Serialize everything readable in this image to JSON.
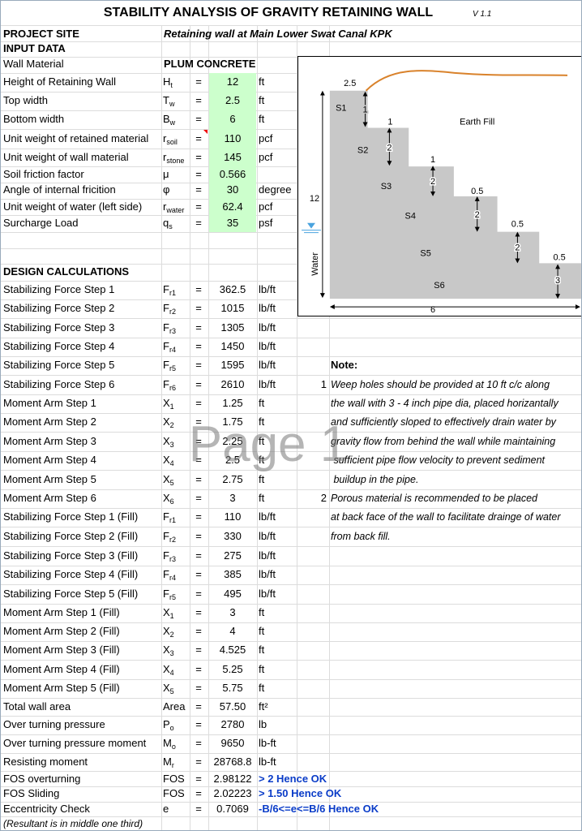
{
  "header": {
    "title": "STABILITY ANALYSIS OF GRAVITY RETAINING WALL",
    "version": "V 1.1"
  },
  "project": {
    "label": "PROJECT SITE",
    "value": "Retaining wall at Main Lower Swat Canal KPK"
  },
  "input_heading": "INPUT DATA",
  "wall_material": {
    "label": "Wall Material",
    "value": "PLUM CONCRETE"
  },
  "inputs": [
    {
      "label": "Height of Retaining Wall",
      "symbol": "H",
      "sub": "t",
      "eq": "=",
      "value": "12",
      "unit": "ft"
    },
    {
      "label": "Top width",
      "symbol": "T",
      "sub": "w",
      "eq": "=",
      "value": "2.5",
      "unit": "ft"
    },
    {
      "label": "Bottom width",
      "symbol": "B",
      "sub": "w",
      "eq": "=",
      "value": "6",
      "unit": "ft"
    },
    {
      "label": "Unit weight of retained material",
      "symbol": "r",
      "sub": "soil",
      "eq": "=",
      "value": "110",
      "unit": "pcf"
    },
    {
      "label": "Unit weight of wall material",
      "symbol": "r",
      "sub": "stone",
      "eq": "=",
      "value": "145",
      "unit": "pcf"
    },
    {
      "label": "Soil friction factor",
      "symbol": "μ",
      "eq": "=",
      "value": "0.566"
    },
    {
      "label": "Angle of internal fricition",
      "symbol": "φ",
      "eq": "=",
      "value": "30",
      "unit": "degree"
    },
    {
      "label": "Unit weight of water (left side)",
      "symbol": "r",
      "sub": "water",
      "eq": "=",
      "value": "62.4",
      "unit": "pcf"
    },
    {
      "label": "Surcharge Load",
      "symbol": "q",
      "sub": "s",
      "eq": "=",
      "value": "35",
      "unit": "psf"
    }
  ],
  "design_heading": "DESIGN CALCULATIONS",
  "calcs": [
    {
      "label": "Stabilizing Force Step 1",
      "symbol": "F",
      "sub": "r1",
      "eq": "=",
      "value": "362.5",
      "unit": "lb/ft"
    },
    {
      "label": "Stabilizing Force Step 2",
      "symbol": "F",
      "sub": "r2",
      "eq": "=",
      "value": "1015",
      "unit": "lb/ft"
    },
    {
      "label": "Stabilizing Force Step 3",
      "symbol": "F",
      "sub": "r3",
      "eq": "=",
      "value": "1305",
      "unit": "lb/ft"
    },
    {
      "label": "Stabilizing Force Step 4",
      "symbol": "F",
      "sub": "r4",
      "eq": "=",
      "value": "1450",
      "unit": "lb/ft"
    },
    {
      "label": "Stabilizing Force Step 5",
      "symbol": "F",
      "sub": "r5",
      "eq": "=",
      "value": "1595",
      "unit": "lb/ft"
    },
    {
      "label": "Stabilizing Force Step 6",
      "symbol": "F",
      "sub": "r6",
      "eq": "=",
      "value": "2610",
      "unit": "lb/ft"
    },
    {
      "label": "Moment Arm Step 1",
      "symbol": "X",
      "sub": "1",
      "eq": "=",
      "value": "1.25",
      "unit": "ft"
    },
    {
      "label": "Moment Arm Step 2",
      "symbol": "X",
      "sub": "2",
      "eq": "=",
      "value": "1.75",
      "unit": "ft"
    },
    {
      "label": "Moment Arm Step 3",
      "symbol": "X",
      "sub": "3",
      "eq": "=",
      "value": "2.25",
      "unit": "ft"
    },
    {
      "label": "Moment Arm Step 4",
      "symbol": "X",
      "sub": "4",
      "eq": "=",
      "value": "2.5",
      "unit": "ft"
    },
    {
      "label": "Moment Arm Step 5",
      "symbol": "X",
      "sub": "5",
      "eq": "=",
      "value": "2.75",
      "unit": "ft"
    },
    {
      "label": "Moment Arm Step 6",
      "symbol": "X",
      "sub": "6",
      "eq": "=",
      "value": "3",
      "unit": "ft"
    },
    {
      "label": "Stabilizing Force Step 1 (Fill)",
      "symbol": "F",
      "sub": "r1",
      "eq": "=",
      "value": "110",
      "unit": "lb/ft"
    },
    {
      "label": "Stabilizing Force Step 2 (Fill)",
      "symbol": "F",
      "sub": "r2",
      "eq": "=",
      "value": "330",
      "unit": "lb/ft"
    },
    {
      "label": "Stabilizing Force Step 3 (Fill)",
      "symbol": "F",
      "sub": "r3",
      "eq": "=",
      "value": "275",
      "unit": "lb/ft"
    },
    {
      "label": "Stabilizing Force Step 4 (Fill)",
      "symbol": "F",
      "sub": "r4",
      "eq": "=",
      "value": "385",
      "unit": "lb/ft"
    },
    {
      "label": "Stabilizing Force Step 5 (Fill)",
      "symbol": "F",
      "sub": "r5",
      "eq": "=",
      "value": "495",
      "unit": "lb/ft"
    },
    {
      "label": "Moment Arm Step 1 (Fill)",
      "symbol": "X",
      "sub": "1",
      "eq": "=",
      "value": "3",
      "unit": "ft"
    },
    {
      "label": "Moment Arm Step 2 (Fill)",
      "symbol": "X",
      "sub": "2",
      "eq": "=",
      "value": "4",
      "unit": "ft"
    },
    {
      "label": "Moment Arm Step 3 (Fill)",
      "symbol": "X",
      "sub": "3",
      "eq": "=",
      "value": "4.525",
      "unit": "ft"
    },
    {
      "label": "Moment Arm Step 4 (Fill)",
      "symbol": "X",
      "sub": "4",
      "eq": "=",
      "value": "5.25",
      "unit": "ft"
    },
    {
      "label": "Moment Arm Step 5 (Fill)",
      "symbol": "X",
      "sub": "5",
      "eq": "=",
      "value": "5.75",
      "unit": "ft"
    },
    {
      "label": "Total wall area",
      "symbol": "Area",
      "eq": "=",
      "value": "57.50",
      "unit": "ft²"
    },
    {
      "label": "Over turning pressure",
      "symbol": "P",
      "sub": "o",
      "eq": "=",
      "value": "2780",
      "unit": "lb"
    },
    {
      "label": "Over turning pressure moment",
      "symbol": "M",
      "sub": "o",
      "eq": "=",
      "value": "9650",
      "unit": "lb-ft"
    },
    {
      "label": "Resisting moment",
      "symbol": "M",
      "sub": "r",
      "eq": "=",
      "value": "28768.8",
      "unit": "lb-ft"
    },
    {
      "label": "FOS overturning",
      "symbol": "FOS",
      "eq": "=",
      "value": "2.98122",
      "check": "> 2 Hence OK"
    },
    {
      "label": "FOS Sliding",
      "symbol": "FOS",
      "eq": "=",
      "value": "2.02223",
      "check": "> 1.50 Hence OK"
    },
    {
      "label": "Eccentricity Check",
      "symbol": "e",
      "eq": "=",
      "value": "0.7069",
      "check": "-B/6<=e<=B/6 Hence OK"
    }
  ],
  "footnote": "(Resultant is in middle one third)",
  "notes": {
    "title": "Note:",
    "items": [
      {
        "number": "1",
        "lines": [
          "Weep holes should be provided at 10 ft c/c along",
          "the wall with 3 - 4 inch pipe dia, placed horizantally",
          "and sufficiently sloped to effectively drain water by",
          "gravity flow from behind the wall while maintaining",
          " sufficient pipe flow velocity to prevent sediment",
          " buildup in the pipe."
        ]
      },
      {
        "number": "2",
        "lines": [
          "Porous material is recommended to be placed",
          "at back face of the wall to facilitate drainge of water",
          "from back fill."
        ]
      }
    ]
  },
  "watermark": "Page 1",
  "diagram": {
    "top_width": "2.5",
    "height": "12",
    "bottom_width": "6",
    "fill": "Earth Fill",
    "water": "Water",
    "steps": [
      "S1",
      "S2",
      "S3",
      "S4",
      "S5",
      "S6"
    ],
    "step_widths": [
      "1",
      "1",
      "0.5",
      "0.5",
      "0.5"
    ],
    "step_heights": [
      "1",
      "2",
      "2",
      "2",
      "2",
      "3"
    ]
  }
}
